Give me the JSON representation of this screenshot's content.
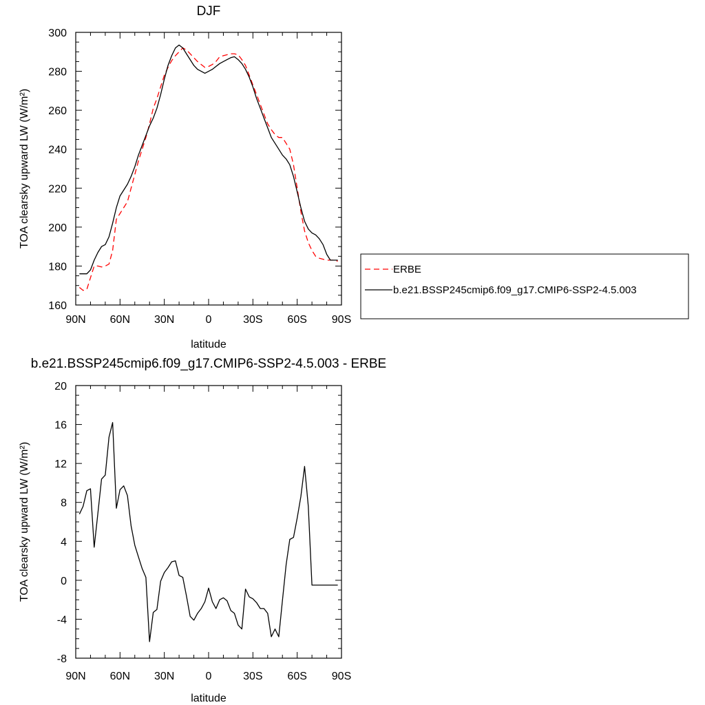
{
  "chart_data": [
    {
      "type": "line",
      "title": "DJF",
      "xlabel": "latitude",
      "ylabel": "TOA clearsky upward LW (W/m²)",
      "xlim": [
        90,
        -90
      ],
      "ylim": [
        160,
        300
      ],
      "xticks": [
        90,
        60,
        30,
        0,
        -30,
        -60,
        -90
      ],
      "xtick_labels": [
        "90N",
        "60N",
        "30N",
        "0",
        "30S",
        "60S",
        "90S"
      ],
      "yticks": [
        160,
        180,
        200,
        220,
        240,
        260,
        280,
        300
      ],
      "ytick_labels": [
        "160",
        "180",
        "200",
        "220",
        "240",
        "260",
        "280",
        "300"
      ],
      "legend_position": "right",
      "series": [
        {
          "name": "ERBE",
          "color": "#ff0000",
          "dash": "dashed",
          "x": [
            87.5,
            85,
            82.5,
            80,
            77.5,
            75,
            72.5,
            70,
            67.5,
            65,
            62.5,
            60,
            57.5,
            55,
            52.5,
            50,
            47.5,
            45,
            42.5,
            40,
            37.5,
            35,
            32.5,
            30,
            27.5,
            25,
            22.5,
            20,
            17.5,
            15,
            12.5,
            10,
            7.5,
            5,
            2.5,
            0,
            -2.5,
            -5,
            -7.5,
            -10,
            -12.5,
            -15,
            -17.5,
            -20,
            -22.5,
            -25,
            -27.5,
            -30,
            -32.5,
            -35,
            -37.5,
            -40,
            -42.5,
            -45,
            -47.5,
            -50,
            -52.5,
            -55,
            -57.5,
            -60,
            -62.5,
            -65,
            -67.5,
            -70,
            -72.5,
            -75,
            -77.5,
            -80,
            -82.5,
            -85,
            -87.5
          ],
          "y": [
            169,
            167.5,
            168,
            174,
            180,
            180,
            179.5,
            180,
            181,
            188,
            204,
            207,
            210,
            213,
            220,
            227,
            234,
            240,
            246,
            253,
            261,
            266,
            272,
            278,
            282,
            285.5,
            288,
            290,
            292,
            291,
            289,
            287,
            285,
            283.5,
            282,
            282.5,
            283.5,
            285,
            287.5,
            288,
            288.5,
            289,
            289,
            288.5,
            286,
            283,
            278,
            273,
            268,
            263,
            258,
            253,
            250,
            247.5,
            246,
            246,
            243,
            240,
            232,
            220,
            208,
            198,
            192,
            188,
            185,
            184,
            183.5,
            183,
            183,
            183,
            182.5
          ]
        },
        {
          "name": "b.e21.BSSP245cmip6.f09_g17.CMIP6-SSP2-4.5.003",
          "color": "#000000",
          "dash": "solid",
          "x": [
            87.5,
            85,
            82.5,
            80,
            77.5,
            75,
            72.5,
            70,
            67.5,
            65,
            62.5,
            60,
            57.5,
            55,
            52.5,
            50,
            47.5,
            45,
            42.5,
            40,
            37.5,
            35,
            32.5,
            30,
            27.5,
            25,
            22.5,
            20,
            17.5,
            15,
            12.5,
            10,
            7.5,
            5,
            2.5,
            0,
            -2.5,
            -5,
            -7.5,
            -10,
            -12.5,
            -15,
            -17.5,
            -20,
            -22.5,
            -25,
            -27.5,
            -30,
            -32.5,
            -35,
            -37.5,
            -40,
            -42.5,
            -45,
            -47.5,
            -50,
            -52.5,
            -55,
            -57.5,
            -60,
            -62.5,
            -65,
            -67.5,
            -70,
            -72.5,
            -75,
            -77.5,
            -80,
            -82.5,
            -85,
            -87.5
          ],
          "y": [
            176,
            176,
            176,
            178,
            183,
            187,
            190,
            191,
            195,
            202,
            210,
            216,
            219,
            222,
            226,
            231,
            237,
            242,
            247,
            252,
            256,
            261,
            268,
            276,
            283,
            288,
            292,
            293.5,
            292,
            289,
            286,
            283,
            281,
            280,
            279,
            280,
            281,
            282.5,
            284,
            285,
            286,
            287,
            287.5,
            286,
            284,
            281,
            277,
            272,
            266,
            261,
            256,
            251,
            246,
            243,
            240,
            237,
            235,
            232,
            226,
            218,
            210,
            203,
            199,
            197,
            196,
            194,
            191,
            186,
            183,
            183,
            183
          ]
        }
      ]
    },
    {
      "type": "line",
      "title": "b.e21.BSSP245cmip6.f09_g17.CMIP6-SSP2-4.5.003 - ERBE",
      "xlabel": "latitude",
      "ylabel": "TOA clearsky upward LW (W/m²)",
      "xlim": [
        90,
        -90
      ],
      "ylim": [
        -8,
        20
      ],
      "xticks": [
        90,
        60,
        30,
        0,
        -30,
        -60,
        -90
      ],
      "xtick_labels": [
        "90N",
        "60N",
        "30N",
        "0",
        "30S",
        "60S",
        "90S"
      ],
      "yticks": [
        -8,
        -4,
        0,
        4,
        8,
        12,
        16,
        20
      ],
      "ytick_labels": [
        "-8",
        "-4",
        "0",
        "4",
        "8",
        "12",
        "16",
        "20"
      ],
      "series": [
        {
          "color": "#000000",
          "dash": "solid",
          "x": [
            87.5,
            85,
            82.5,
            80,
            77.5,
            75,
            72.5,
            70,
            67.5,
            65,
            62.5,
            60,
            57.5,
            55,
            52.5,
            50,
            47.5,
            45,
            42.5,
            40,
            37.5,
            35,
            32.5,
            30,
            27.5,
            25,
            22.5,
            20,
            17.5,
            15,
            12.5,
            10,
            7.5,
            5,
            2.5,
            0,
            -2.5,
            -5,
            -7.5,
            -10,
            -12.5,
            -15,
            -17.5,
            -20,
            -22.5,
            -25,
            -27.5,
            -30,
            -32.5,
            -35,
            -37.5,
            -40,
            -42.5,
            -45,
            -47.5,
            -50,
            -52.5,
            -55,
            -57.5,
            -60,
            -62.5,
            -65,
            -67.5,
            -70,
            -72.5,
            -75,
            -77.5,
            -80,
            -82.5,
            -85,
            -87.5
          ],
          "y": [
            6.8,
            7.6,
            9.2,
            9.4,
            3.4,
            6.9,
            10.4,
            10.8,
            14.7,
            16.2,
            7.4,
            9.3,
            9.7,
            8.7,
            5.6,
            3.6,
            2.4,
            1.2,
            0.3,
            -6.3,
            -3.3,
            -3.0,
            -0.1,
            0.8,
            1.3,
            1.9,
            2.0,
            0.5,
            0.3,
            -1.6,
            -3.7,
            -4.1,
            -3.4,
            -2.9,
            -2.2,
            -0.8,
            -2.2,
            -2.9,
            -2.0,
            -1.8,
            -2.1,
            -3.1,
            -3.4,
            -4.6,
            -5.0,
            -0.9,
            -1.7,
            -1.9,
            -2.3,
            -2.9,
            -2.9,
            -3.4,
            -5.8,
            -5.0,
            -5.8,
            -2.1,
            1.6,
            4.2,
            4.4,
            6.4,
            8.6,
            11.7,
            7.6,
            -0.5,
            -0.5,
            -0.5,
            -0.5,
            -0.5,
            -0.5,
            -0.5,
            -0.5
          ]
        }
      ]
    }
  ]
}
